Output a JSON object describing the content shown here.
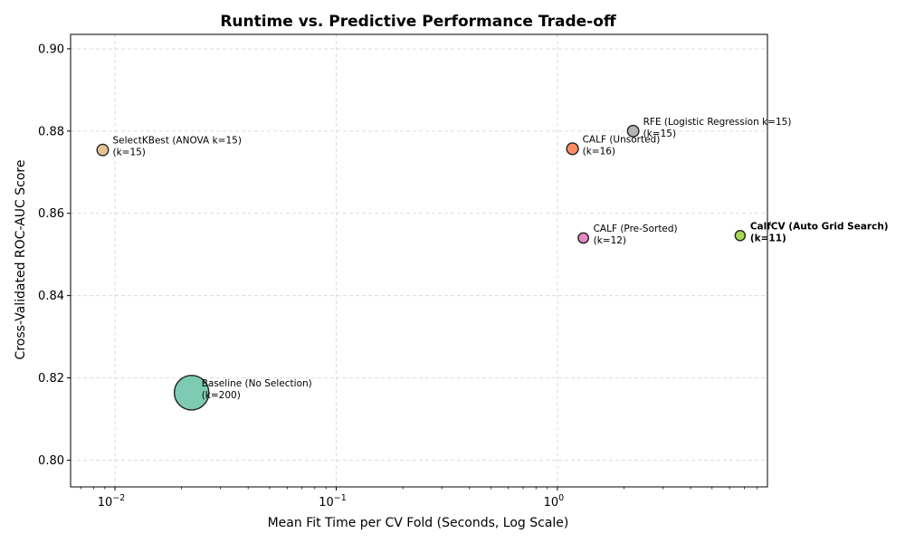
{
  "chart_data": {
    "type": "scatter",
    "title": "Runtime vs. Predictive Performance Trade-off",
    "xlabel": "Mean Fit Time per CV Fold (Seconds, Log Scale)",
    "ylabel": "Cross-Validated ROC-AUC Score",
    "x_scale": "log",
    "xlim": [
      0.0063,
      8.9
    ],
    "ylim": [
      0.7935,
      0.9035
    ],
    "x_major_ticks": [
      {
        "value": 0.01,
        "base": "10",
        "exp": "−2"
      },
      {
        "value": 0.1,
        "base": "10",
        "exp": "−1"
      },
      {
        "value": 1,
        "base": "10",
        "exp": "0"
      }
    ],
    "y_ticks": [
      {
        "value": 0.8,
        "label": "0.80"
      },
      {
        "value": 0.82,
        "label": "0.82"
      },
      {
        "value": 0.84,
        "label": "0.84"
      },
      {
        "value": 0.86,
        "label": "0.86"
      },
      {
        "value": 0.88,
        "label": "0.88"
      },
      {
        "value": 0.9,
        "label": "0.90"
      }
    ],
    "grid": true,
    "points": [
      {
        "label_line1": "SelectKBest (ANOVA k=15)",
        "label_line2": "(k=15)",
        "x": 0.0088,
        "y": 0.8754,
        "k": 15,
        "color": "#e5c494",
        "bold": false
      },
      {
        "label_line1": "Baseline (No Selection)",
        "label_line2": "(k=200)",
        "x": 0.0222,
        "y": 0.8164,
        "k": 200,
        "color": "#66c2a5",
        "bold": false
      },
      {
        "label_line1": "CALF (Unsorted)",
        "label_line2": "(k=16)",
        "x": 1.17,
        "y": 0.8757,
        "k": 16,
        "color": "#fc8d62",
        "bold": false
      },
      {
        "label_line1": "CALF (Pre-Sorted)",
        "label_line2": "(k=12)",
        "x": 1.31,
        "y": 0.854,
        "k": 12,
        "color": "#e78ac3",
        "bold": false
      },
      {
        "label_line1": "RFE (Logistic Regression k=15)",
        "label_line2": "(k=15)",
        "x": 2.2,
        "y": 0.88,
        "k": 15,
        "color": "#b3b3b3",
        "bold": false
      },
      {
        "label_line1": "CalfCV (Auto Grid Search)",
        "label_line2": "(k=11)",
        "x": 6.7,
        "y": 0.8546,
        "k": 11,
        "color": "#a6d854",
        "bold": true
      }
    ]
  }
}
